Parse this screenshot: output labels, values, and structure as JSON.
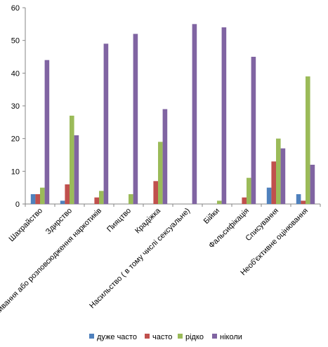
{
  "chart_data": {
    "type": "bar",
    "categories": [
      "Шахрайство",
      "Здирство",
      "Вживання або розповсюдження наркотиків",
      "Пияцтво",
      "Крадіжка",
      "Насильство ( в тому числі сексуальне)",
      "Бійки",
      "Фальсифікація",
      "Списування",
      "Необ'єктивне оцінювання"
    ],
    "series": [
      {
        "name": "дуже часто",
        "color": "#4f81bd",
        "values": [
          3,
          1,
          0,
          0,
          0,
          0,
          0,
          0,
          5,
          3
        ]
      },
      {
        "name": "часто",
        "color": "#c0504d",
        "values": [
          3,
          6,
          2,
          0,
          7,
          0,
          0,
          2,
          13,
          1
        ]
      },
      {
        "name": "рідко",
        "color": "#9bbb59",
        "values": [
          5,
          27,
          4,
          3,
          19,
          0,
          1,
          8,
          20,
          39
        ]
      },
      {
        "name": "ніколи",
        "color": "#8064a2",
        "values": [
          44,
          21,
          49,
          52,
          29,
          55,
          54,
          45,
          17,
          12
        ]
      }
    ],
    "title": "",
    "xlabel": "",
    "ylabel": "",
    "ylim": [
      0,
      60
    ],
    "yticks": [
      0,
      10,
      20,
      30,
      40,
      50,
      60
    ],
    "grid": false,
    "legend": "bottom"
  }
}
